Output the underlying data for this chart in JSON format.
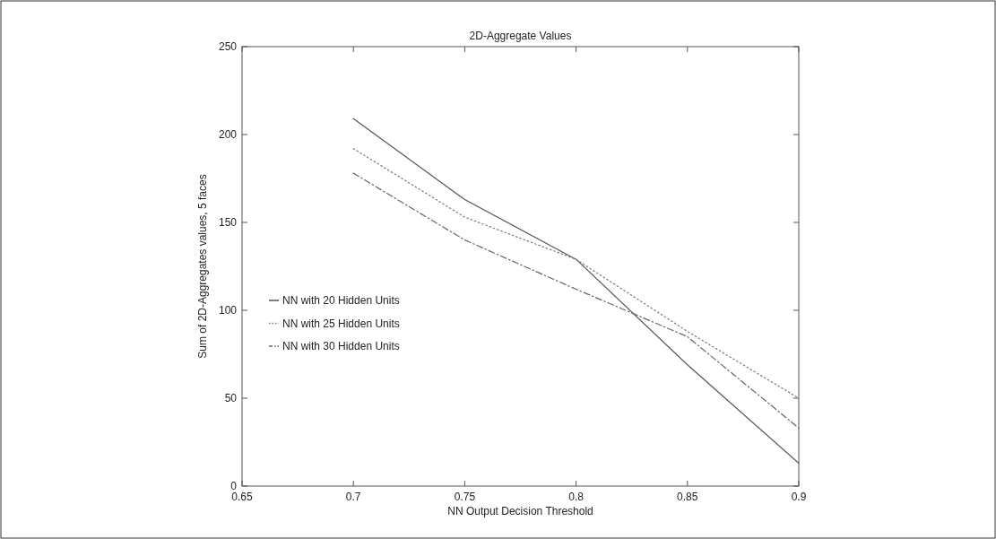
{
  "chart_data": {
    "type": "line",
    "title": "2D-Aggregate Values",
    "xlabel": "NN Output Decision Threshold",
    "ylabel": "Sum of 2D-Aggregates values, 5 faces",
    "x": [
      0.7,
      0.75,
      0.8,
      0.85,
      0.9
    ],
    "series": [
      {
        "name": "NN with 20 Hidden Units",
        "color": "#555555",
        "line_style": "solid",
        "values": [
          209,
          163,
          129,
          69,
          13
        ]
      },
      {
        "name": "NN with 25 Hidden Units",
        "color": "#777777",
        "line_style": "dotted",
        "values": [
          192,
          153,
          129,
          88,
          50
        ]
      },
      {
        "name": "NN with 30 Hidden Units",
        "color": "#666666",
        "line_style": "dashed",
        "values": [
          178,
          140,
          112,
          85,
          33
        ]
      }
    ],
    "xlim": [
      0.65,
      0.9
    ],
    "xticks": [
      0.65,
      0.7,
      0.75,
      0.8,
      0.85,
      0.9
    ],
    "ylim": [
      0,
      250
    ],
    "yticks": [
      0,
      50,
      100,
      150,
      200,
      250
    ],
    "grid": false,
    "legend": "left",
    "marker": "none"
  }
}
